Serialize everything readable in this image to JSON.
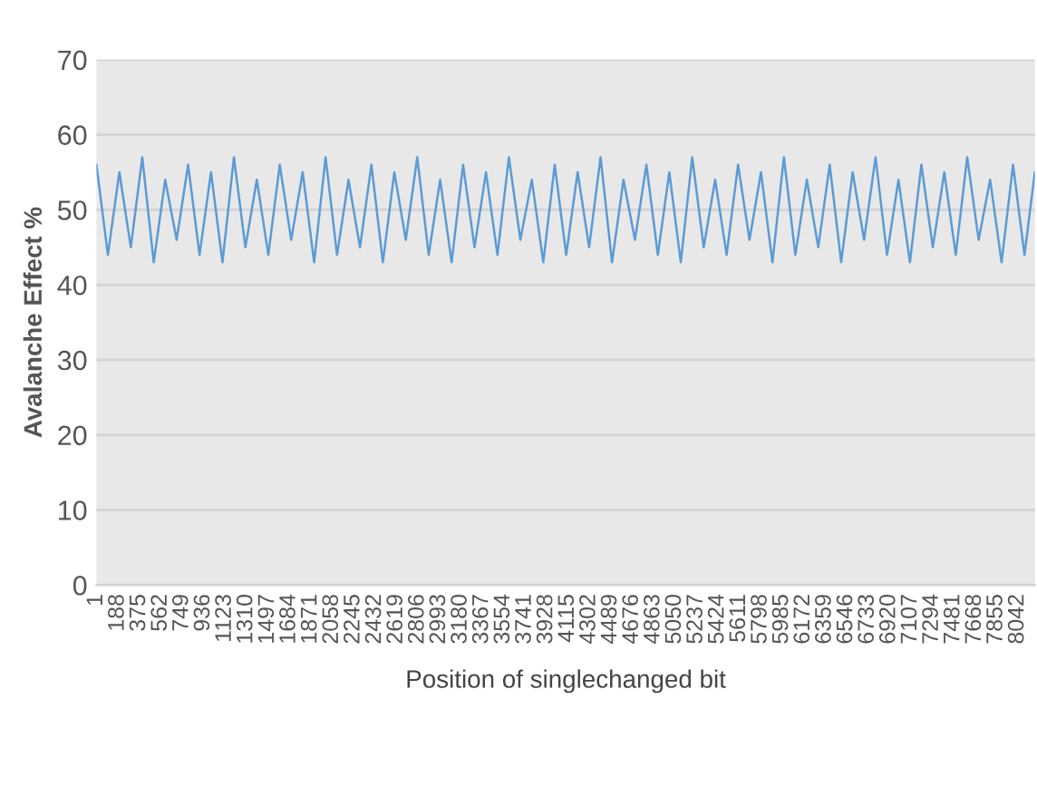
{
  "chart_data": {
    "type": "line",
    "xlabel": "Position of singlechanged bit",
    "ylabel": "Avalanche Effect %",
    "x": [
      1,
      101,
      201,
      301,
      401,
      501,
      601,
      701,
      801,
      901,
      1001,
      1101,
      1201,
      1301,
      1401,
      1501,
      1601,
      1701,
      1801,
      1901,
      2001,
      2101,
      2201,
      2301,
      2401,
      2501,
      2601,
      2701,
      2801,
      2901,
      3001,
      3101,
      3201,
      3301,
      3401,
      3501,
      3601,
      3701,
      3801,
      3901,
      4001,
      4101,
      4201,
      4301,
      4401,
      4501,
      4601,
      4701,
      4801,
      4901,
      5001,
      5101,
      5201,
      5301,
      5401,
      5501,
      5601,
      5701,
      5801,
      5901,
      6001,
      6101,
      6201,
      6301,
      6401,
      6501,
      6601,
      6701,
      6801,
      6901,
      7001,
      7101,
      7201,
      7301,
      7401,
      7501,
      7601,
      7701,
      7801,
      7901,
      8001,
      8101,
      8191
    ],
    "series": [
      {
        "color": "#5b9bd5",
        "values": [
          56,
          44,
          55,
          45,
          57,
          43,
          54,
          46,
          56,
          44,
          55,
          43,
          57,
          45,
          54,
          44,
          56,
          46,
          55,
          43,
          57,
          44,
          54,
          45,
          56,
          43,
          55,
          46,
          57,
          44,
          54,
          43,
          56,
          45,
          55,
          44,
          57,
          46,
          54,
          43,
          56,
          44,
          55,
          45,
          57,
          43,
          54,
          46,
          56,
          44,
          55,
          43,
          57,
          45,
          54,
          44,
          56,
          46,
          55,
          43,
          57,
          44,
          54,
          45,
          56,
          43,
          55,
          46,
          57,
          44,
          54,
          43,
          56,
          45,
          55,
          44,
          57,
          46,
          54,
          43,
          56,
          44,
          55
        ]
      }
    ],
    "xlim": [
      1,
      8192
    ],
    "xticks": [
      1,
      188,
      375,
      562,
      749,
      936,
      1123,
      1310,
      1497,
      1684,
      1871,
      2058,
      2245,
      2432,
      2619,
      2806,
      2993,
      3180,
      3367,
      3554,
      3741,
      3928,
      4115,
      4302,
      4489,
      4676,
      4863,
      5050,
      5237,
      5424,
      5611,
      5798,
      5985,
      6172,
      6359,
      6546,
      6733,
      6920,
      7107,
      7294,
      7481,
      7668,
      7855,
      8042
    ],
    "ylim": [
      0,
      70
    ],
    "yticks": [
      0,
      10,
      20,
      30,
      40,
      50,
      60,
      70
    ],
    "grid": "y",
    "marker": "none",
    "line_style": "solid",
    "legend": false
  }
}
